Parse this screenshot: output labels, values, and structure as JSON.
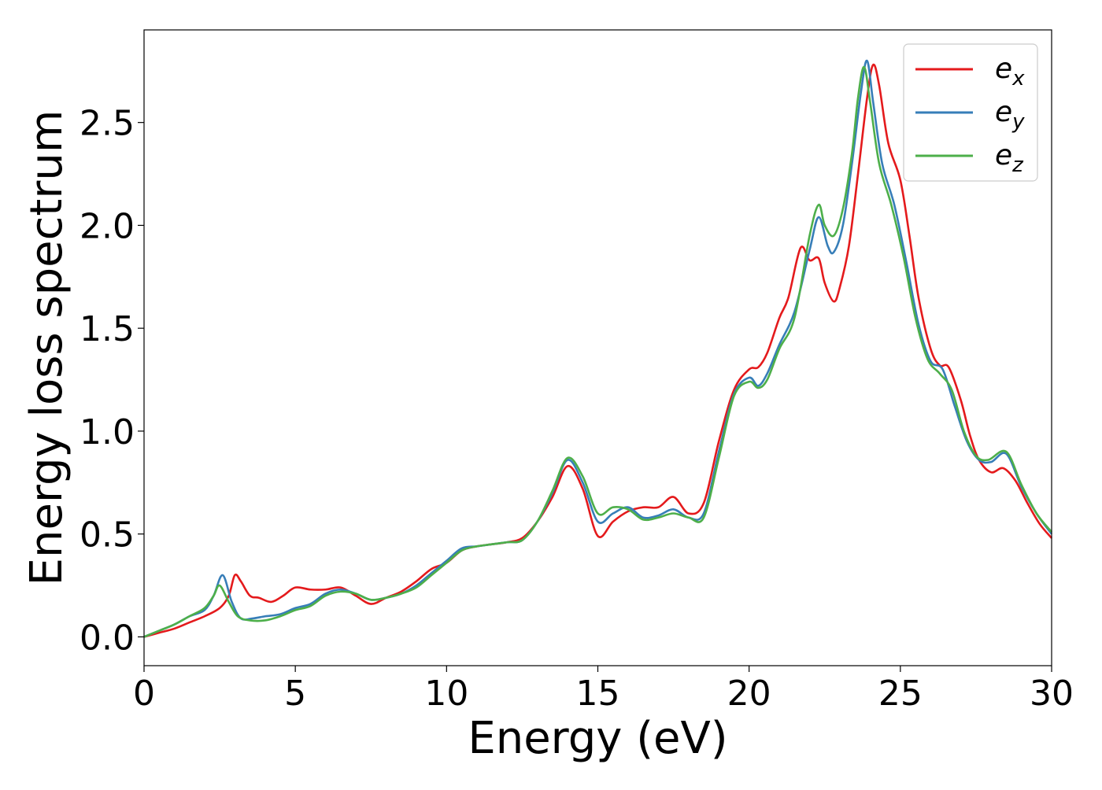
{
  "chart_data": {
    "type": "line",
    "title": "",
    "xlabel": "Energy (eV)",
    "ylabel": "Energy loss spectrum",
    "xlim": [
      0,
      30
    ],
    "ylim": [
      -0.14,
      2.95
    ],
    "xticks": [
      0,
      5,
      10,
      15,
      20,
      25,
      30
    ],
    "yticks": [
      0.0,
      0.5,
      1.0,
      1.5,
      2.0,
      2.5
    ],
    "xtick_labels": [
      "0",
      "5",
      "10",
      "15",
      "20",
      "25",
      "30"
    ],
    "ytick_labels": [
      "0.0",
      "0.5",
      "1.0",
      "1.5",
      "2.0",
      "2.5"
    ],
    "grid": false,
    "legend_position": "top-right",
    "series": [
      {
        "name": "e_x",
        "label_base": "e",
        "label_sub": "x",
        "color": "#e41a1c",
        "x": [
          0,
          0.5,
          1,
          1.5,
          2,
          2.5,
          2.8,
          3.0,
          3.2,
          3.5,
          3.8,
          4.2,
          4.6,
          5.0,
          5.5,
          6.0,
          6.5,
          7.0,
          7.5,
          8.0,
          8.5,
          9.0,
          9.5,
          10.0,
          10.5,
          11.0,
          11.5,
          12.0,
          12.5,
          13.0,
          13.5,
          14.0,
          14.5,
          15.0,
          15.5,
          16.0,
          16.5,
          17.0,
          17.5,
          18.0,
          18.5,
          19.0,
          19.5,
          20.0,
          20.3,
          20.6,
          21.0,
          21.3,
          21.7,
          22.0,
          22.3,
          22.5,
          22.8,
          23.0,
          23.3,
          23.6,
          23.9,
          24.1,
          24.3,
          24.6,
          25.0,
          25.3,
          25.6,
          26.0,
          26.3,
          26.6,
          27.0,
          27.3,
          27.6,
          28.0,
          28.4,
          28.8,
          29.2,
          29.6,
          30.0
        ],
        "y": [
          0.0,
          0.02,
          0.04,
          0.07,
          0.1,
          0.14,
          0.2,
          0.3,
          0.27,
          0.2,
          0.19,
          0.17,
          0.2,
          0.24,
          0.23,
          0.23,
          0.24,
          0.2,
          0.16,
          0.19,
          0.22,
          0.27,
          0.33,
          0.36,
          0.42,
          0.44,
          0.45,
          0.46,
          0.48,
          0.56,
          0.68,
          0.83,
          0.72,
          0.49,
          0.56,
          0.61,
          0.63,
          0.63,
          0.68,
          0.6,
          0.65,
          0.95,
          1.2,
          1.3,
          1.31,
          1.38,
          1.55,
          1.65,
          1.89,
          1.83,
          1.84,
          1.72,
          1.63,
          1.7,
          1.9,
          2.25,
          2.62,
          2.78,
          2.68,
          2.4,
          2.22,
          1.95,
          1.65,
          1.4,
          1.32,
          1.31,
          1.15,
          0.98,
          0.86,
          0.8,
          0.82,
          0.76,
          0.65,
          0.55,
          0.48
        ]
      },
      {
        "name": "e_y",
        "label_base": "e",
        "label_sub": "y",
        "color": "#377eb8",
        "x": [
          0,
          0.5,
          1,
          1.5,
          2,
          2.3,
          2.6,
          2.9,
          3.2,
          3.6,
          4.0,
          4.5,
          5.0,
          5.5,
          6.0,
          6.5,
          7.0,
          7.5,
          8.0,
          8.5,
          9.0,
          9.5,
          10.0,
          10.5,
          11.0,
          11.5,
          12.0,
          12.5,
          13.0,
          13.5,
          14.0,
          14.5,
          15.0,
          15.5,
          16.0,
          16.5,
          17.0,
          17.5,
          18.0,
          18.5,
          19.0,
          19.5,
          20.0,
          20.3,
          20.6,
          21.0,
          21.5,
          22.0,
          22.3,
          22.6,
          22.8,
          23.1,
          23.4,
          23.7,
          23.9,
          24.1,
          24.4,
          24.8,
          25.2,
          25.6,
          26.0,
          26.4,
          26.8,
          27.2,
          27.6,
          28.0,
          28.5,
          29.0,
          29.5,
          30.0
        ],
        "y": [
          0.0,
          0.03,
          0.06,
          0.1,
          0.13,
          0.2,
          0.3,
          0.17,
          0.09,
          0.09,
          0.1,
          0.11,
          0.14,
          0.16,
          0.21,
          0.23,
          0.21,
          0.18,
          0.19,
          0.21,
          0.25,
          0.31,
          0.37,
          0.43,
          0.44,
          0.45,
          0.46,
          0.47,
          0.56,
          0.7,
          0.86,
          0.75,
          0.56,
          0.6,
          0.63,
          0.58,
          0.59,
          0.62,
          0.58,
          0.6,
          0.9,
          1.18,
          1.26,
          1.22,
          1.28,
          1.42,
          1.58,
          1.88,
          2.04,
          1.9,
          1.87,
          2.0,
          2.3,
          2.65,
          2.8,
          2.6,
          2.3,
          2.1,
          1.82,
          1.52,
          1.34,
          1.3,
          1.12,
          0.95,
          0.86,
          0.85,
          0.89,
          0.73,
          0.6,
          0.5
        ]
      },
      {
        "name": "e_z",
        "label_base": "e",
        "label_sub": "z",
        "color": "#4daf4a",
        "x": [
          0,
          0.5,
          1,
          1.5,
          2,
          2.3,
          2.5,
          2.8,
          3.1,
          3.5,
          4.0,
          4.5,
          5.0,
          5.5,
          6.0,
          6.5,
          7.0,
          7.5,
          8.0,
          8.5,
          9.0,
          9.5,
          10.0,
          10.5,
          11.0,
          11.5,
          12.0,
          12.5,
          13.0,
          13.5,
          14.0,
          14.5,
          15.0,
          15.5,
          16.0,
          16.5,
          17.0,
          17.5,
          18.0,
          18.5,
          19.0,
          19.5,
          20.0,
          20.3,
          20.6,
          21.0,
          21.5,
          22.0,
          22.3,
          22.5,
          22.8,
          23.1,
          23.4,
          23.6,
          23.8,
          24.0,
          24.3,
          24.7,
          25.1,
          25.5,
          25.9,
          26.3,
          26.7,
          27.1,
          27.5,
          27.9,
          28.5,
          29.0,
          29.5,
          30.0
        ],
        "y": [
          0.0,
          0.03,
          0.06,
          0.1,
          0.14,
          0.2,
          0.25,
          0.17,
          0.1,
          0.08,
          0.08,
          0.1,
          0.13,
          0.15,
          0.2,
          0.22,
          0.21,
          0.18,
          0.19,
          0.21,
          0.24,
          0.3,
          0.36,
          0.42,
          0.44,
          0.45,
          0.46,
          0.47,
          0.56,
          0.71,
          0.87,
          0.78,
          0.6,
          0.63,
          0.62,
          0.57,
          0.58,
          0.6,
          0.58,
          0.58,
          0.87,
          1.17,
          1.24,
          1.21,
          1.25,
          1.4,
          1.55,
          1.95,
          2.1,
          2.0,
          1.95,
          2.08,
          2.35,
          2.62,
          2.77,
          2.6,
          2.3,
          2.1,
          1.85,
          1.55,
          1.35,
          1.28,
          1.2,
          1.0,
          0.88,
          0.86,
          0.9,
          0.74,
          0.6,
          0.51
        ]
      }
    ]
  }
}
